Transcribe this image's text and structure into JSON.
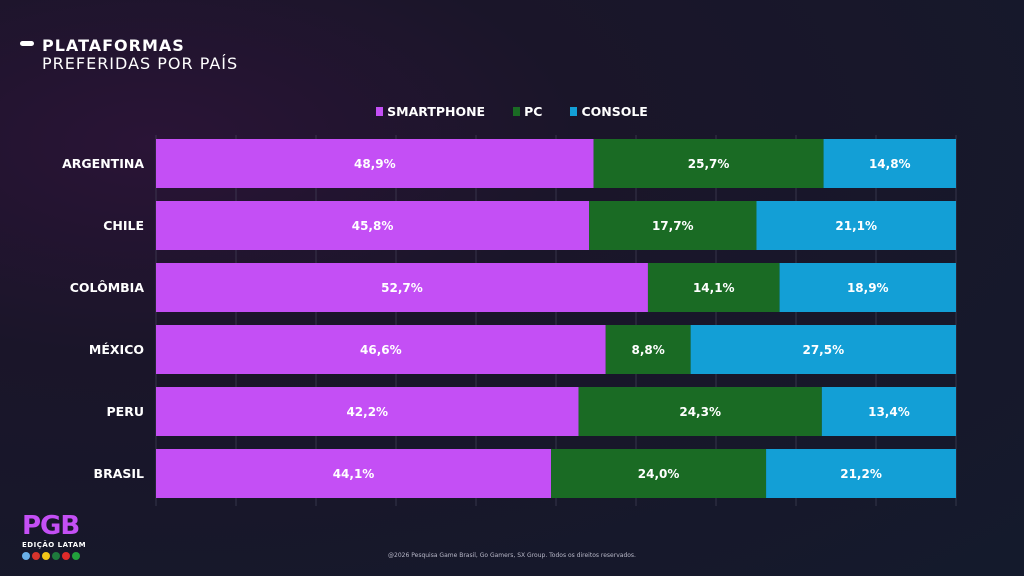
{
  "header": {
    "title": "PLATAFORMAS",
    "subtitle": "PREFERIDAS POR PAÍS"
  },
  "legend": [
    {
      "label": "SMARTPHONE",
      "color": "#c44ff5"
    },
    {
      "label": "PC",
      "color": "#1a6b24"
    },
    {
      "label": "CONSOLE",
      "color": "#139fd6"
    }
  ],
  "chart_data": {
    "type": "bar",
    "orientation": "horizontal",
    "stacked": true,
    "categories": [
      "ARGENTINA",
      "CHILE",
      "COLÔMBIA",
      "MÉXICO",
      "PERU",
      "BRASIL"
    ],
    "series": [
      {
        "name": "SMARTPHONE",
        "color": "#c44ff5",
        "values": [
          48.9,
          45.8,
          52.7,
          46.6,
          42.2,
          44.1
        ],
        "labels": [
          "48,9%",
          "45,8%",
          "52,7%",
          "46,6%",
          "42,2%",
          "44,1%"
        ]
      },
      {
        "name": "PC",
        "color": "#1a6b24",
        "values": [
          25.7,
          17.7,
          14.1,
          8.8,
          24.3,
          24.0
        ],
        "labels": [
          "25,7%",
          "17,7%",
          "14,1%",
          "8,8%",
          "24,3%",
          "24,0%"
        ]
      },
      {
        "name": "CONSOLE",
        "color": "#139fd6",
        "values": [
          14.8,
          21.1,
          18.9,
          27.5,
          13.4,
          21.2
        ],
        "labels": [
          "14,8%",
          "21,1%",
          "18,9%",
          "27,5%",
          "13,4%",
          "21,2%"
        ]
      }
    ],
    "grid": true,
    "legend_position": "top-center"
  },
  "logo": {
    "text": "PGB",
    "subtitle": "EDIÇÃO LATAM",
    "flag_colors": [
      "#6ab0e8",
      "#d8342c",
      "#f2c618",
      "#1e7a3c",
      "#e02a2a",
      "#22a23c"
    ]
  },
  "footer": "@2026 Pesquisa Game Brasil, Go Gamers, SX Group. Todos os direitos reservados."
}
